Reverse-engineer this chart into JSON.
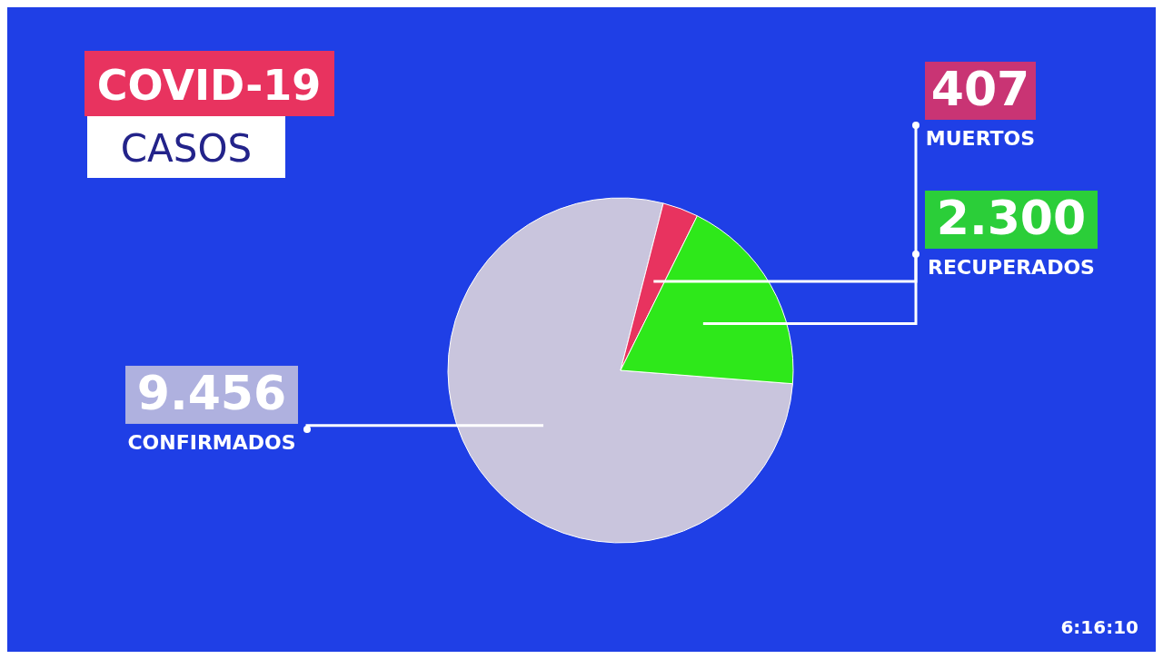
{
  "chart_data": {
    "type": "pie",
    "title": "COVID-19",
    "subtitle": "CASOS",
    "categories": [
      "CONFIRMADOS",
      "MUERTOS",
      "RECUPERADOS"
    ],
    "values": [
      9456,
      407,
      2300
    ],
    "value_labels": [
      "9.456",
      "407",
      "2.300"
    ],
    "colors": [
      "#c9c5dd",
      "#e8335f",
      "#2ee81a"
    ],
    "legend": false,
    "annotations": [
      "6:16:10"
    ]
  }
}
